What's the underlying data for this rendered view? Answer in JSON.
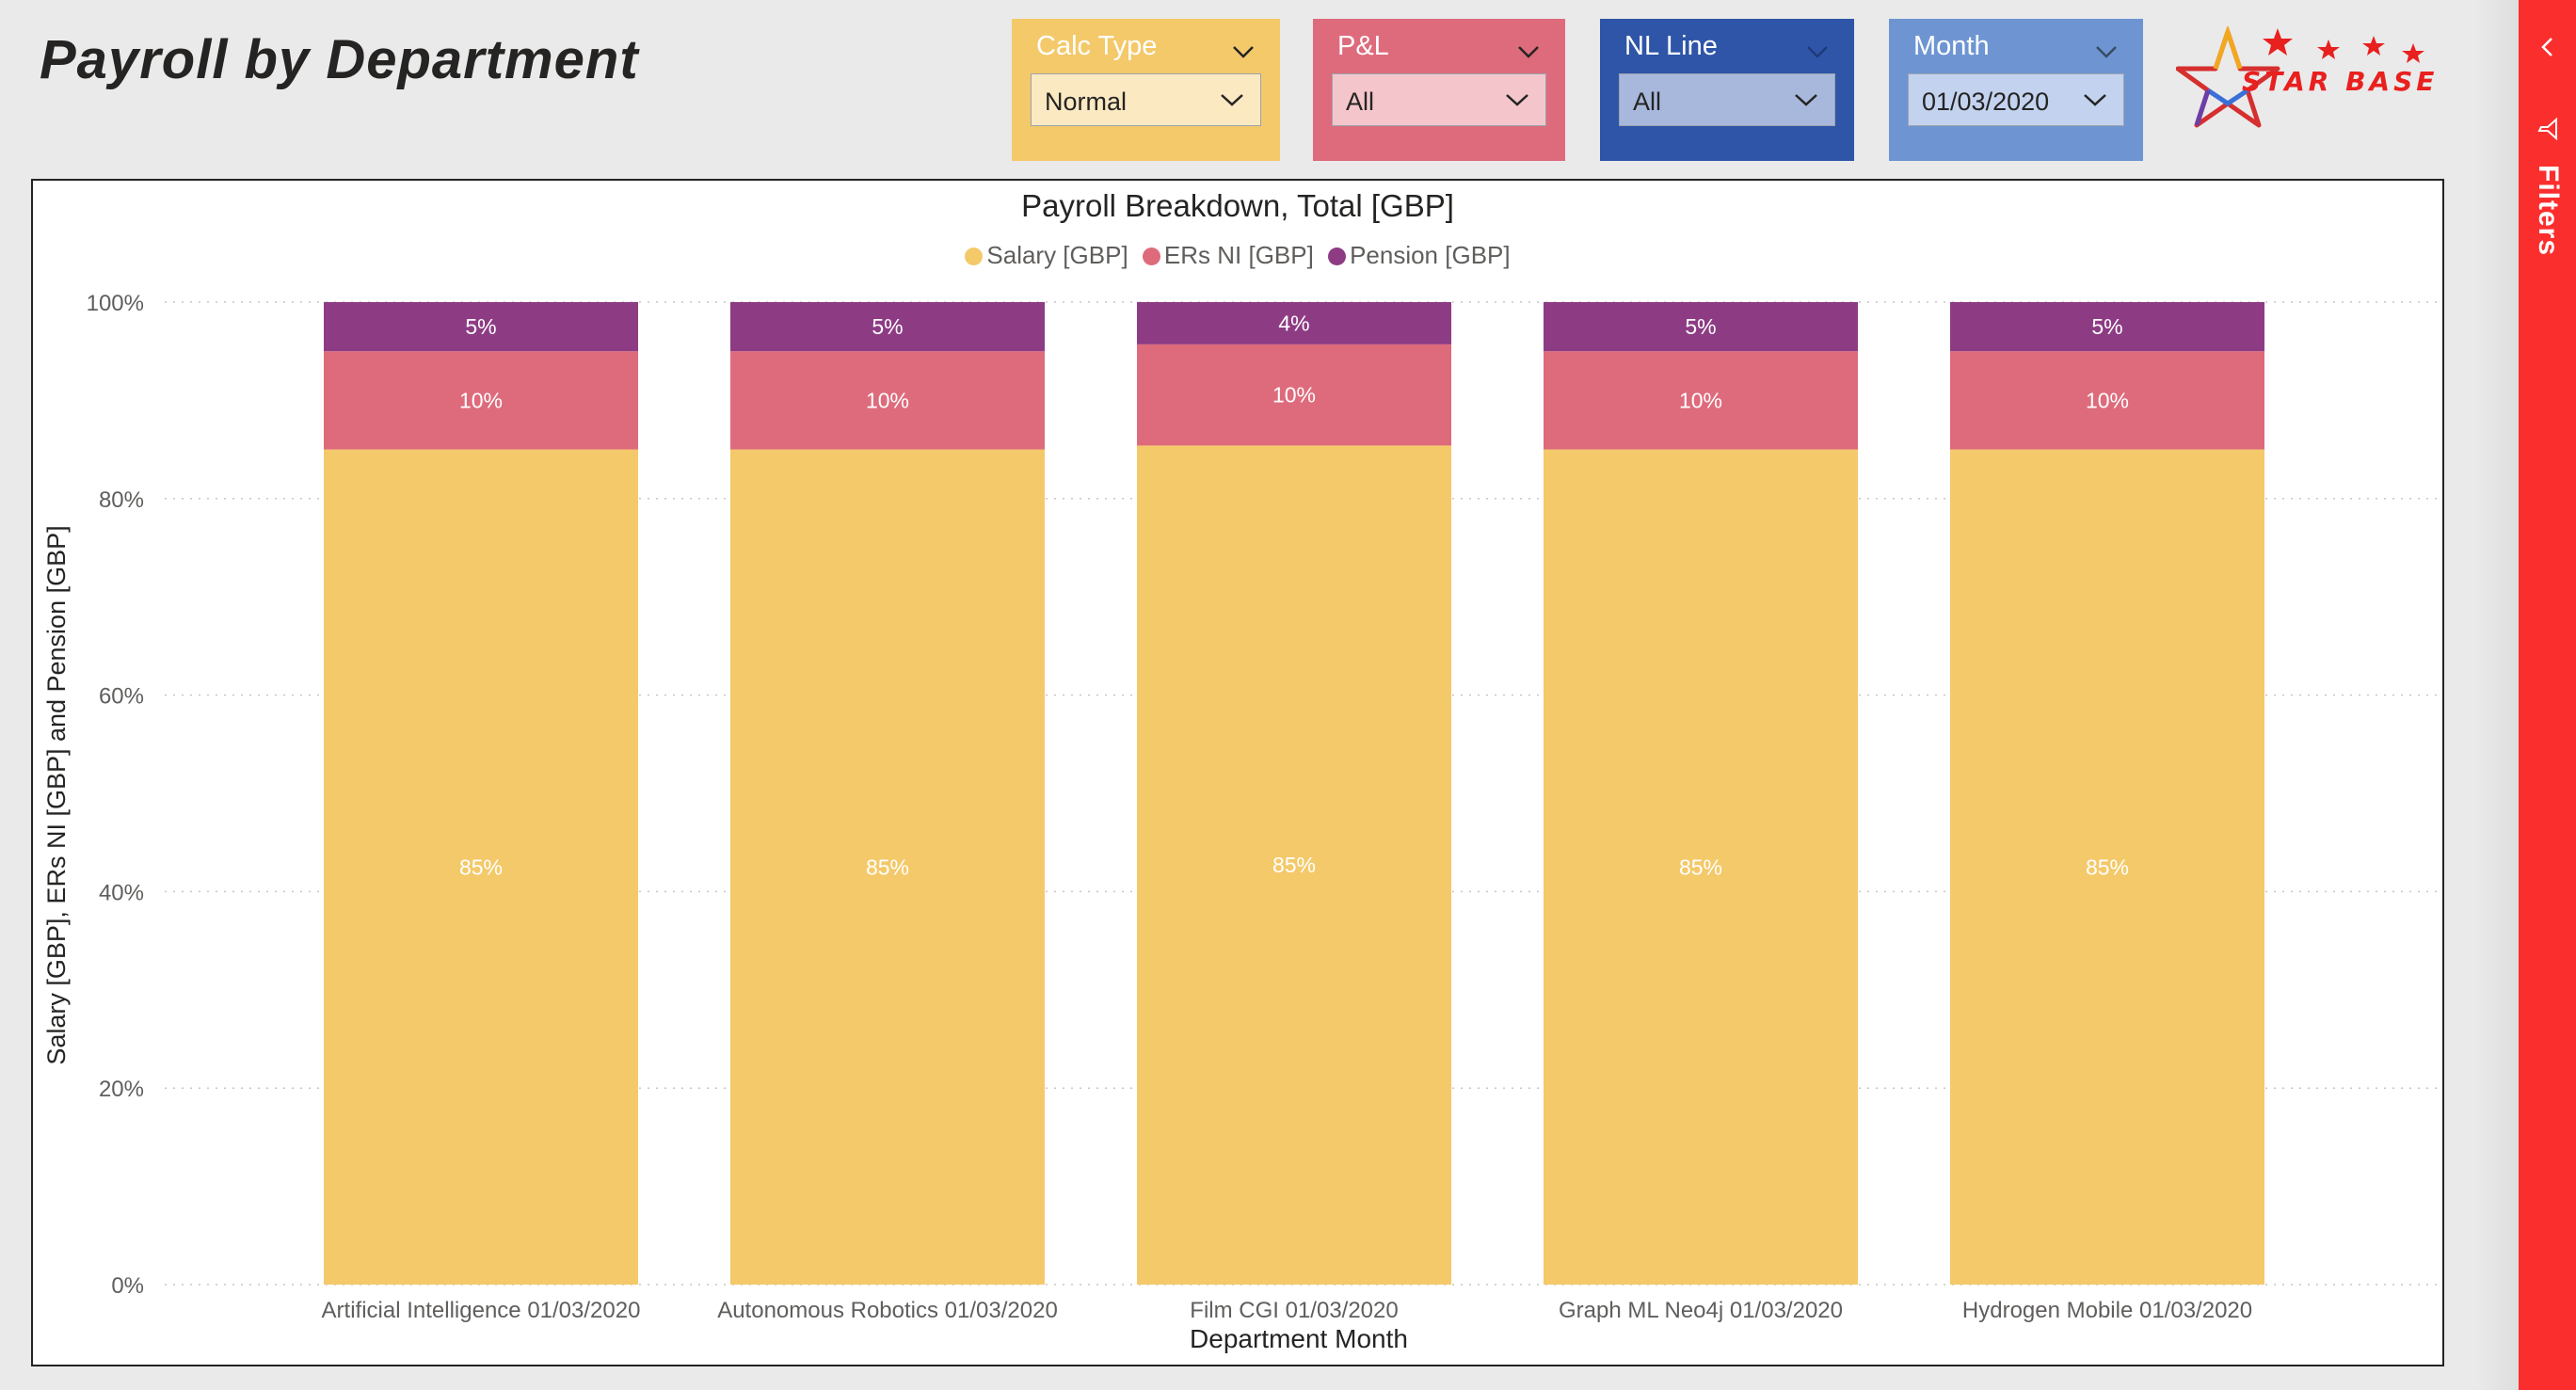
{
  "page": {
    "title": "Payroll by Department"
  },
  "slicers": [
    {
      "name": "calc-type",
      "label": "Calc Type",
      "value": "Normal",
      "color": "#f4c96a",
      "inner": "#fbe9c2"
    },
    {
      "name": "pnl",
      "label": "P&L",
      "value": "All",
      "color": "#de6b7c",
      "inner": "#f4c6cc"
    },
    {
      "name": "nl-line",
      "label": "NL Line",
      "value": "All",
      "color": "#2f55a8",
      "inner": "#a8b8dc"
    },
    {
      "name": "month",
      "label": "Month",
      "value": "01/03/2020",
      "color": "#6e95d2",
      "inner": "#c3d3ef"
    }
  ],
  "logo": {
    "text": "STAR BASE"
  },
  "filters_pane": {
    "label": "Filters"
  },
  "icons": {
    "collapse": "chevron-left-icon",
    "filter": "filter-icon",
    "dropdown": "chevron-down-icon"
  },
  "chart_data": {
    "type": "bar",
    "stacked": true,
    "normalized": true,
    "title": "Payroll Breakdown, Total [GBP]",
    "xlabel": "Department Month",
    "ylabel": "Salary [GBP], ERs NI [GBP] and Pension [GBP]",
    "ylim": [
      0,
      100
    ],
    "yticks": [
      "0%",
      "20%",
      "40%",
      "60%",
      "80%",
      "100%"
    ],
    "grid": true,
    "legend_position": "top-center",
    "categories": [
      "Artificial Intelligence 01/03/2020",
      "Autonomous Robotics 01/03/2020",
      "Film CGI 01/03/2020",
      "Graph ML Neo4j 01/03/2020",
      "Hydrogen Mobile 01/03/2020"
    ],
    "series": [
      {
        "name": "Salary [GBP]",
        "color": "#f4c96a",
        "values": [
          85,
          85,
          85.4,
          85,
          85
        ],
        "labels": [
          "85%",
          "85%",
          "85%",
          "85%",
          "85%"
        ]
      },
      {
        "name": "ERs NI [GBP]",
        "color": "#de6b7c",
        "values": [
          10,
          10,
          10.3,
          10,
          10
        ],
        "labels": [
          "10%",
          "10%",
          "10%",
          "10%",
          "10%"
        ]
      },
      {
        "name": "Pension [GBP]",
        "color": "#8d3c84",
        "values": [
          5,
          5,
          4.3,
          5,
          5
        ],
        "labels": [
          "5%",
          "5%",
          "4%",
          "5%",
          "5%"
        ]
      }
    ]
  }
}
